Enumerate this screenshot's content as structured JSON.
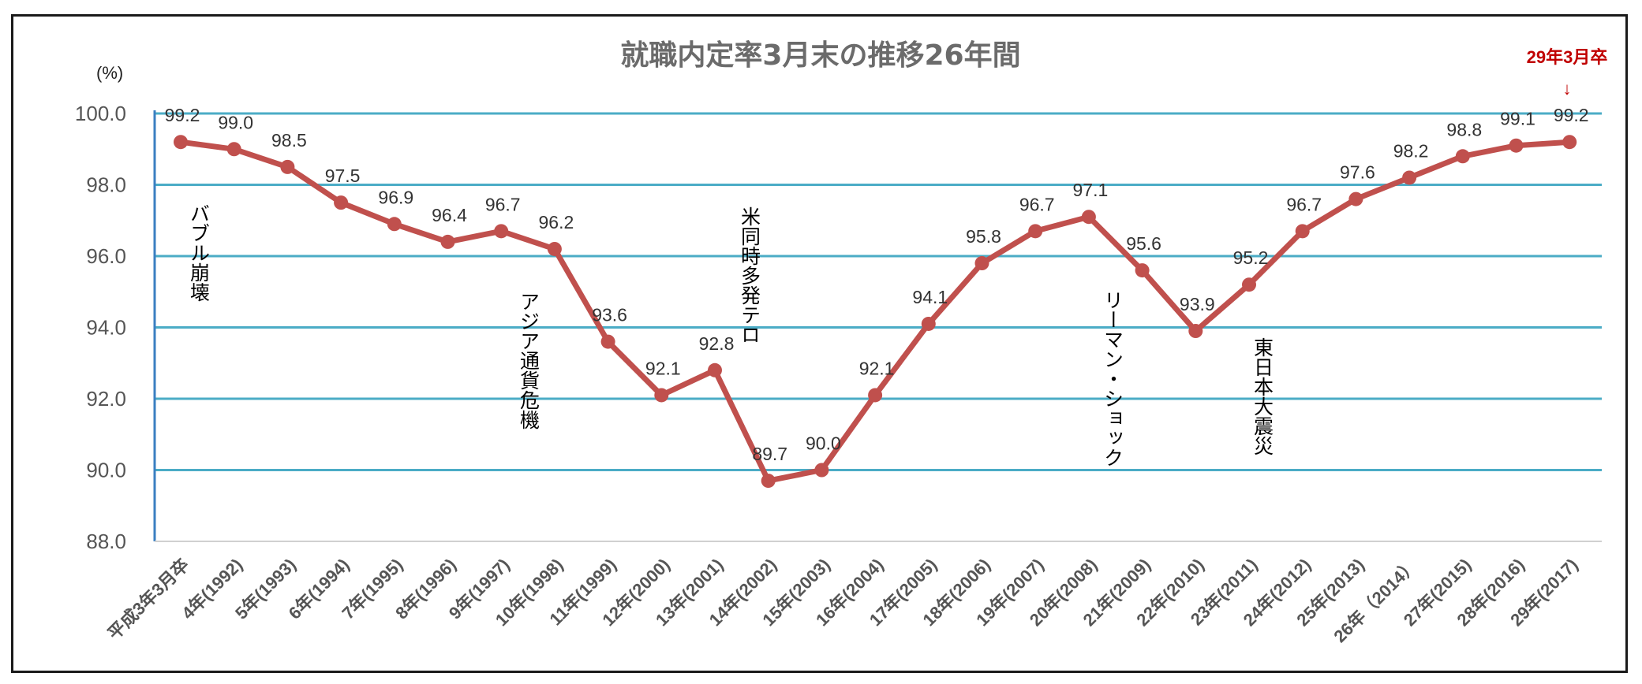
{
  "chart_data": {
    "type": "line",
    "title": "就職内定率3月末の推移26年間",
    "unit_label": "(%)",
    "ylim": [
      88.0,
      100.0
    ],
    "yticks": [
      "88.0",
      "90.0",
      "92.0",
      "94.0",
      "96.0",
      "98.0",
      "100.0"
    ],
    "grid": true,
    "categories": [
      "平成3年3月卒",
      "4年(1992)",
      "5年(1993)",
      "6年(1994)",
      "7年(1995)",
      "8年(1996)",
      "9年(1997)",
      "10年(1998)",
      "11年(1999)",
      "12年(2000)",
      "13年(2001)",
      "14年(2002)",
      "15年(2003)",
      "16年(2004)",
      "17年(2005)",
      "18年(2006)",
      "19年(2007)",
      "20年(2008)",
      "21年(2009)",
      "22年(2010)",
      "23年(2011)",
      "24年(2012)",
      "25年(2013)",
      "26年（2014）",
      "27年(2015)",
      "28年(2016)",
      "29年(2017)"
    ],
    "series": [
      {
        "values": [
          99.2,
          99.0,
          98.5,
          97.5,
          96.9,
          96.4,
          96.7,
          96.2,
          93.6,
          92.1,
          92.8,
          89.7,
          90.0,
          92.1,
          94.1,
          95.8,
          96.7,
          97.1,
          95.6,
          93.9,
          95.2,
          96.7,
          97.6,
          98.2,
          98.8,
          99.1,
          99.2
        ],
        "labels": [
          "99.2",
          "99.0",
          "98.5",
          "97.5",
          "96.9",
          "96.4",
          "96.7",
          "96.2",
          "93.6",
          "92.1",
          "92.8",
          "89.7",
          "90.0",
          "92.1",
          "94.1",
          "95.8",
          "96.7",
          "97.1",
          "95.6",
          "93.9",
          "95.2",
          "96.7",
          "97.6",
          "98.2",
          "98.8",
          "99.1",
          "99.2"
        ]
      }
    ],
    "annotations": [
      {
        "index": 0,
        "text": "バブル崩壊"
      },
      {
        "index": 7,
        "text": "アジア通貨危機"
      },
      {
        "index": 11,
        "text": "米同時多発テロ"
      },
      {
        "index": 18,
        "text": "リーマン・ショック"
      },
      {
        "index": 20,
        "text": "東日本大震災"
      }
    ],
    "callout": {
      "text": "29年3月卒",
      "arrow": "↓"
    }
  },
  "colors": {
    "line": "#c0504d",
    "grid": "#4bacc6",
    "axis": "#3a7fc1",
    "callout": "#c00000"
  }
}
